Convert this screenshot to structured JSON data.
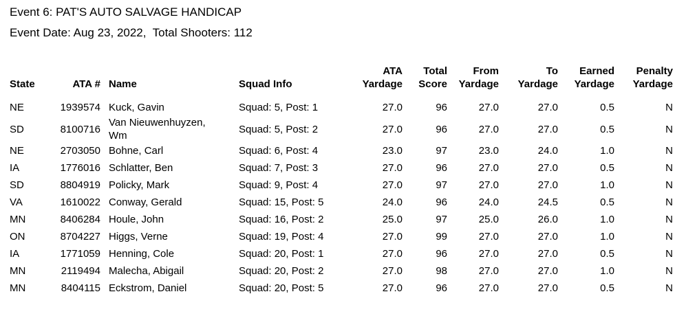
{
  "header": {
    "title": "Event 6: PAT'S AUTO SALVAGE HANDICAP",
    "event_info": "Event Date: Aug 23, 2022,  Total Shooters: 112"
  },
  "table": {
    "columns": [
      {
        "key": "state",
        "label": "State",
        "align": "left"
      },
      {
        "key": "ata-number",
        "label": "ATA #",
        "align": "right"
      },
      {
        "key": "name",
        "label": "Name",
        "align": "left"
      },
      {
        "key": "squad-info",
        "label": "Squad Info",
        "align": "left"
      },
      {
        "key": "ata-yardage",
        "label": "ATA\nYardage",
        "align": "right"
      },
      {
        "key": "total-score",
        "label": "Total\nScore",
        "align": "right"
      },
      {
        "key": "from-yardage",
        "label": "From\nYardage",
        "align": "right"
      },
      {
        "key": "to-yardage",
        "label": "To\nYardage",
        "align": "right"
      },
      {
        "key": "earned-yardage",
        "label": "Earned\nYardage",
        "align": "right"
      },
      {
        "key": "penalty-yardage",
        "label": "Penalty\nYardage",
        "align": "right"
      }
    ],
    "rows": [
      [
        "NE",
        "1939574",
        "Kuck, Gavin",
        "Squad: 5, Post: 1",
        "27.0",
        "96",
        "27.0",
        "27.0",
        "0.5",
        "N"
      ],
      [
        "SD",
        "8100716",
        "Van Nieuwenhuyzen, Wm",
        "Squad: 5, Post: 2",
        "27.0",
        "96",
        "27.0",
        "27.0",
        "0.5",
        "N"
      ],
      [
        "NE",
        "2703050",
        "Bohne, Carl",
        "Squad: 6, Post: 4",
        "23.0",
        "97",
        "23.0",
        "24.0",
        "1.0",
        "N"
      ],
      [
        "IA",
        "1776016",
        "Schlatter, Ben",
        "Squad: 7, Post: 3",
        "27.0",
        "96",
        "27.0",
        "27.0",
        "0.5",
        "N"
      ],
      [
        "SD",
        "8804919",
        "Policky, Mark",
        "Squad: 9, Post: 4",
        "27.0",
        "97",
        "27.0",
        "27.0",
        "1.0",
        "N"
      ],
      [
        "VA",
        "1610022",
        "Conway, Gerald",
        "Squad: 15, Post: 5",
        "24.0",
        "96",
        "24.0",
        "24.5",
        "0.5",
        "N"
      ],
      [
        "MN",
        "8406284",
        "Houle, John",
        "Squad: 16, Post: 2",
        "25.0",
        "97",
        "25.0",
        "26.0",
        "1.0",
        "N"
      ],
      [
        "ON",
        "8704227",
        "Higgs, Verne",
        "Squad: 19, Post: 4",
        "27.0",
        "99",
        "27.0",
        "27.0",
        "1.0",
        "N"
      ],
      [
        "IA",
        "1771059",
        "Henning, Cole",
        "Squad: 20, Post: 1",
        "27.0",
        "96",
        "27.0",
        "27.0",
        "0.5",
        "N"
      ],
      [
        "MN",
        "2119494",
        "Malecha, Abigail",
        "Squad: 20, Post: 2",
        "27.0",
        "98",
        "27.0",
        "27.0",
        "1.0",
        "N"
      ],
      [
        "MN",
        "8404115",
        "Eckstrom, Daniel",
        "Squad: 20, Post: 5",
        "27.0",
        "96",
        "27.0",
        "27.0",
        "0.5",
        "N"
      ]
    ]
  }
}
